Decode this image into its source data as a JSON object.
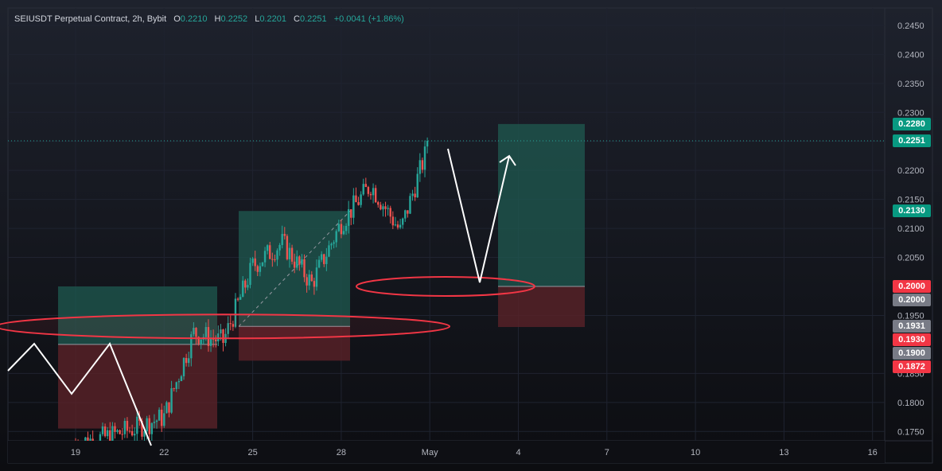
{
  "header": {
    "symbol": "SEIUSDT Perpetual Contract, 2h, Bybit",
    "open_label": "O",
    "open": "0.2210",
    "high_label": "H",
    "high": "0.2252",
    "low_label": "L",
    "low": "0.2201",
    "close_label": "C",
    "close": "0.2251",
    "change": "+0.0041 (+1.86%)"
  },
  "colors": {
    "up": "#26a69a",
    "down": "#ef5350",
    "long_zone": "#1f5a50",
    "short_zone": "#5a2228",
    "ellipse": "#f23645",
    "path": "#ffffff"
  },
  "price_labels": [
    {
      "text": "0.2280",
      "color": "#089981",
      "value": 0.228
    },
    {
      "text": "0.2251",
      "color": "#089981",
      "value": 0.2251
    },
    {
      "text": "0.2130",
      "color": "#089981",
      "value": 0.213
    },
    {
      "text": "0.2000",
      "color": "#f23645",
      "value": 0.2
    },
    {
      "text": "0.2000",
      "color": "#787b86",
      "value": 0.2
    },
    {
      "text": "0.1931",
      "color": "#787b86",
      "value": 0.1931
    },
    {
      "text": "0.1930",
      "color": "#f23645",
      "value": 0.193
    },
    {
      "text": "0.1900",
      "color": "#787b86",
      "value": 0.19
    },
    {
      "text": "0.1872",
      "color": "#f23645",
      "value": 0.1872
    }
  ],
  "chart_data": {
    "type": "candlestick",
    "title": "SEIUSDT Perpetual Contract, 2h, Bybit",
    "y_ticks": [
      "0.2450",
      "0.2400",
      "0.2350",
      "0.2300",
      "0.2250",
      "0.2200",
      "0.2150",
      "0.2100",
      "0.2050",
      "0.1950",
      "0.1850",
      "0.1800",
      "0.1750"
    ],
    "ylim": [
      0.1735,
      0.2475
    ],
    "x_ticks": [
      "19",
      "22",
      "25",
      "28",
      "May",
      "4",
      "7",
      "10",
      "13",
      "16"
    ],
    "last_price": 0.2251,
    "approx_close_path": [
      {
        "day": "19",
        "close": 0.173
      },
      {
        "day": "20",
        "close": 0.174
      },
      {
        "day": "21",
        "close": 0.1755
      },
      {
        "day": "22",
        "close": 0.1775
      },
      {
        "day": "23",
        "close": 0.192
      },
      {
        "day": "24",
        "close": 0.1905
      },
      {
        "day": "25",
        "close": 0.2035
      },
      {
        "day": "26",
        "close": 0.2075
      },
      {
        "day": "27",
        "close": 0.2005
      },
      {
        "day": "28",
        "close": 0.211
      },
      {
        "day": "29",
        "close": 0.2175
      },
      {
        "day": "30",
        "close": 0.2095
      },
      {
        "day": "May",
        "close": 0.2251
      }
    ],
    "position_boxes": [
      {
        "kind": "long",
        "entry": 0.2,
        "target": 0.228,
        "stop": 0.193
      },
      {
        "kind": "long",
        "entry": 0.1931,
        "target": 0.213,
        "stop": 0.1872
      },
      {
        "kind": "long",
        "entry": 0.19,
        "target": 0.2,
        "stop": 0.1755
      }
    ],
    "grid": true
  }
}
